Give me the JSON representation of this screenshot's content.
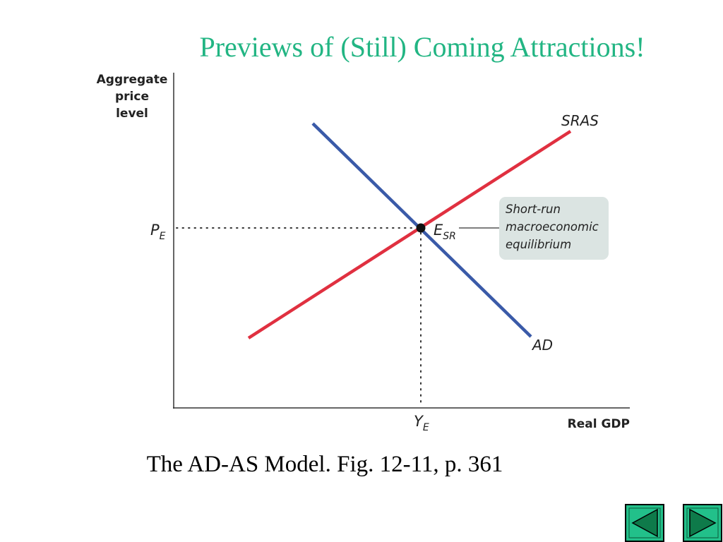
{
  "header": {
    "title": "Previews of (Still) Coming Attractions!"
  },
  "diagram": {
    "y_axis_label": [
      "Aggregate",
      "price",
      "level"
    ],
    "x_axis_label": "Real GDP",
    "supply_curve": "SRAS",
    "demand_curve": "AD",
    "price_label": {
      "base": "P",
      "sub": "E"
    },
    "quantity_label": {
      "base": "Y",
      "sub": "E"
    },
    "equilibrium_label": {
      "base": "E",
      "sub": "SR"
    },
    "callout": [
      "Short-run",
      "macroeconomic",
      "equilibrium"
    ]
  },
  "caption": "The AD-AS Model. Fig. 12-11, p. 361"
}
